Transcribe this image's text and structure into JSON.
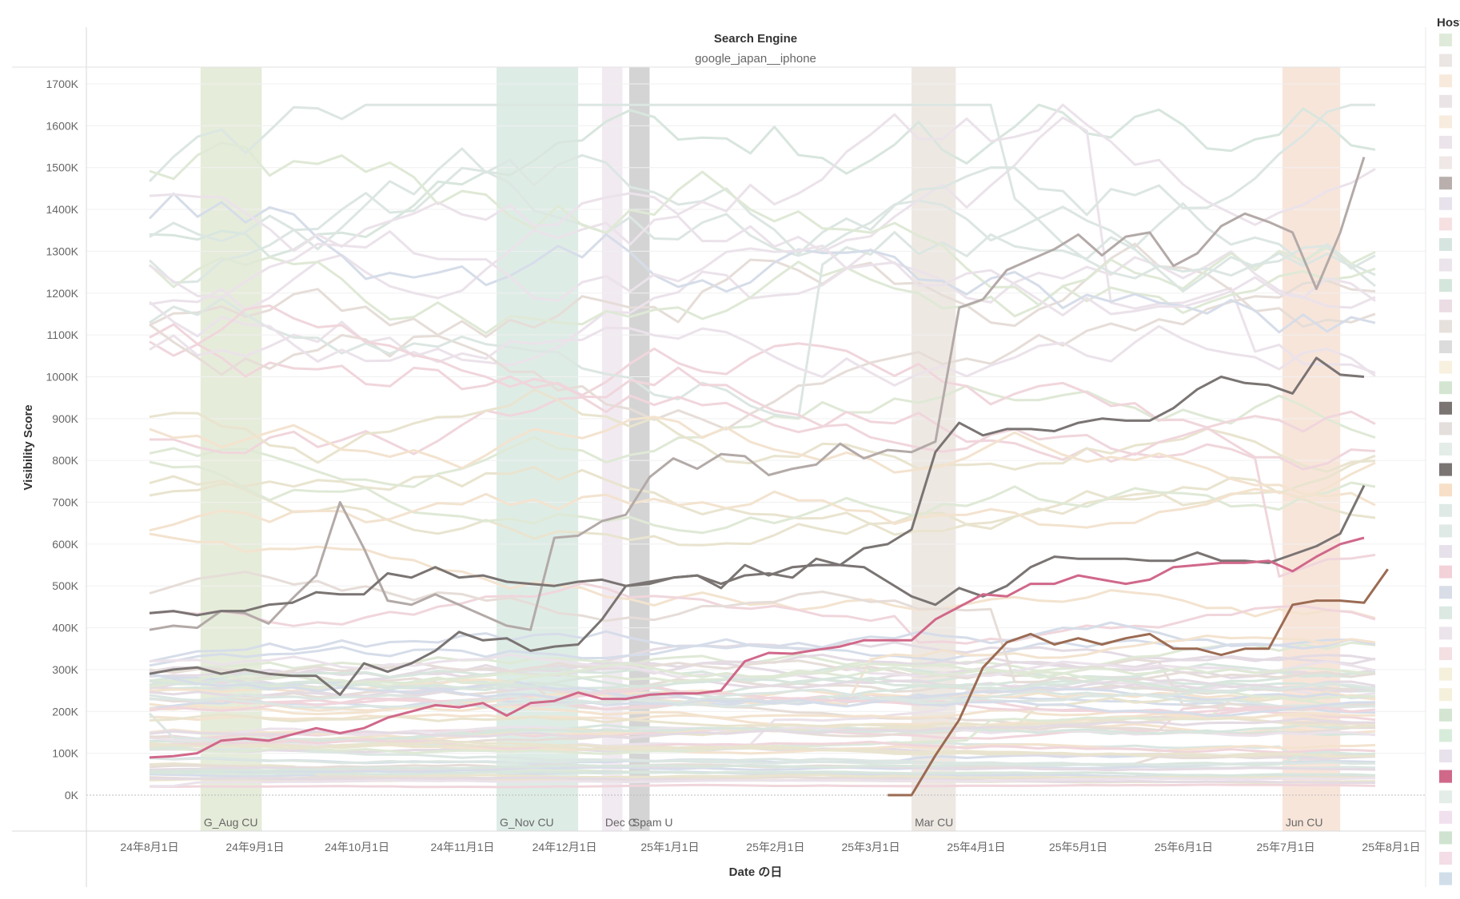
{
  "chart_data": {
    "type": "line",
    "header": {
      "title": "Search Engine",
      "subtitle": "google_japan__iphone"
    },
    "ylabel": "Visibility Score",
    "xlabel": "Date の日",
    "legend_title": "Host",
    "ylim": [
      0,
      1700000
    ],
    "y_ticks": [
      {
        "value": 0,
        "label": "0K"
      },
      {
        "value": 100000,
        "label": "100K"
      },
      {
        "value": 200000,
        "label": "200K"
      },
      {
        "value": 300000,
        "label": "300K"
      },
      {
        "value": 400000,
        "label": "400K"
      },
      {
        "value": 500000,
        "label": "500K"
      },
      {
        "value": 600000,
        "label": "600K"
      },
      {
        "value": 700000,
        "label": "700K"
      },
      {
        "value": 800000,
        "label": "800K"
      },
      {
        "value": 900000,
        "label": "900K"
      },
      {
        "value": 1000000,
        "label": "1000K"
      },
      {
        "value": 1100000,
        "label": "1100K"
      },
      {
        "value": 1200000,
        "label": "1200K"
      },
      {
        "value": 1300000,
        "label": "1300K"
      },
      {
        "value": 1400000,
        "label": "1400K"
      },
      {
        "value": 1500000,
        "label": "1500K"
      },
      {
        "value": 1600000,
        "label": "1600K"
      },
      {
        "value": 1700000,
        "label": "1700K"
      }
    ],
    "x_ticks": [
      {
        "date": "2024-08-01",
        "label": "24年8月1日"
      },
      {
        "date": "2024-09-01",
        "label": "24年9月1日"
      },
      {
        "date": "2024-10-01",
        "label": "24年10月1日"
      },
      {
        "date": "2024-11-01",
        "label": "24年11月1日"
      },
      {
        "date": "2024-12-01",
        "label": "24年12月1日"
      },
      {
        "date": "2025-01-01",
        "label": "25年1月1日"
      },
      {
        "date": "2025-02-01",
        "label": "25年2月1日"
      },
      {
        "date": "2025-03-01",
        "label": "25年3月1日"
      },
      {
        "date": "2025-04-01",
        "label": "25年4月1日"
      },
      {
        "date": "2025-05-01",
        "label": "25年5月1日"
      },
      {
        "date": "2025-06-01",
        "label": "25年6月1日"
      },
      {
        "date": "2025-07-01",
        "label": "25年7月1日"
      },
      {
        "date": "2025-08-01",
        "label": "25年8月1日"
      }
    ],
    "annotation_bands": [
      {
        "label": "G_Aug CU",
        "start": "2024-08-16",
        "end": "2024-09-03",
        "color": "#e6ecda"
      },
      {
        "label": "G_Nov CU",
        "start": "2024-11-11",
        "end": "2024-12-05",
        "color": "#deece6"
      },
      {
        "label": "Dec C",
        "start": "2024-12-12",
        "end": "2024-12-18",
        "color": "#f1eaf1"
      },
      {
        "label": "Spam U",
        "start": "2024-12-20",
        "end": "2024-12-26",
        "color": "#d4d4d4"
      },
      {
        "label": "Mar CU",
        "start": "2025-03-13",
        "end": "2025-03-26",
        "color": "#eee8e3"
      },
      {
        "label": "Jun CU",
        "start": "2025-06-30",
        "end": "2025-07-17",
        "color": "#f8e5da"
      }
    ],
    "series_colors": {
      "highlight_light_gray": "#b3aaa8",
      "highlight_dark_gray": "#7a7473",
      "highlight_pink": "#d0688a",
      "highlight_brown": "#9b6b52"
    },
    "highlighted_series": [
      {
        "color": "#b3aaa8",
        "x": [
          "2024-08-01",
          "2024-08-08",
          "2024-08-15",
          "2024-08-22",
          "2024-08-29",
          "2024-09-05",
          "2024-09-12",
          "2024-09-19",
          "2024-09-26",
          "2024-10-03",
          "2024-10-10",
          "2024-10-17",
          "2024-10-24",
          "2024-10-31",
          "2024-11-07",
          "2024-11-14",
          "2024-11-21",
          "2024-11-28",
          "2024-12-05",
          "2024-12-12",
          "2024-12-19",
          "2024-12-26",
          "2025-01-02",
          "2025-01-09",
          "2025-01-16",
          "2025-01-23",
          "2025-01-30",
          "2025-02-06",
          "2025-02-13",
          "2025-02-20",
          "2025-02-27",
          "2025-03-06",
          "2025-03-13",
          "2025-03-20",
          "2025-03-27",
          "2025-04-03",
          "2025-04-10",
          "2025-04-17",
          "2025-04-24",
          "2025-05-01",
          "2025-05-08",
          "2025-05-15",
          "2025-05-22",
          "2025-05-29",
          "2025-06-05",
          "2025-06-12",
          "2025-06-19",
          "2025-06-26",
          "2025-07-03",
          "2025-07-10",
          "2025-07-17",
          "2025-07-24"
        ],
        "values": [
          395000,
          405000,
          400000,
          440000,
          435000,
          410000,
          470000,
          525000,
          700000,
          590000,
          465000,
          455000,
          480000,
          455000,
          430000,
          405000,
          395000,
          615000,
          620000,
          655000,
          670000,
          760000,
          805000,
          780000,
          815000,
          810000,
          765000,
          780000,
          790000,
          840000,
          805000,
          825000,
          820000,
          845000,
          1165000,
          1185000,
          1255000,
          1280000,
          1305000,
          1340000,
          1290000,
          1335000,
          1345000,
          1265000,
          1295000,
          1360000,
          1390000,
          1370000,
          1345000,
          1210000,
          1345000,
          1525000
        ]
      },
      {
        "color": "#7a7473",
        "x": [
          "2024-08-01",
          "2024-08-08",
          "2024-08-15",
          "2024-08-22",
          "2024-08-29",
          "2024-09-05",
          "2024-09-12",
          "2024-09-19",
          "2024-09-26",
          "2024-10-03",
          "2024-10-10",
          "2024-10-17",
          "2024-10-24",
          "2024-10-31",
          "2024-11-07",
          "2024-11-14",
          "2024-11-21",
          "2024-11-28",
          "2024-12-05",
          "2024-12-12",
          "2024-12-19",
          "2024-12-26",
          "2025-01-02",
          "2025-01-09",
          "2025-01-16",
          "2025-01-23",
          "2025-01-30",
          "2025-02-06",
          "2025-02-13",
          "2025-02-20",
          "2025-02-27",
          "2025-03-06",
          "2025-03-13",
          "2025-03-20",
          "2025-03-27",
          "2025-04-03",
          "2025-04-10",
          "2025-04-17",
          "2025-04-24",
          "2025-05-01",
          "2025-05-08",
          "2025-05-15",
          "2025-05-22",
          "2025-05-29",
          "2025-06-05",
          "2025-06-12",
          "2025-06-19",
          "2025-06-26",
          "2025-07-03",
          "2025-07-10",
          "2025-07-17",
          "2025-07-24"
        ],
        "values": [
          435000,
          440000,
          430000,
          440000,
          440000,
          455000,
          460000,
          485000,
          480000,
          480000,
          530000,
          520000,
          545000,
          520000,
          525000,
          510000,
          505000,
          500000,
          510000,
          515000,
          500000,
          505000,
          520000,
          525000,
          495000,
          550000,
          525000,
          545000,
          550000,
          550000,
          590000,
          600000,
          635000,
          820000,
          890000,
          860000,
          875000,
          875000,
          870000,
          890000,
          900000,
          895000,
          895000,
          925000,
          970000,
          1000000,
          985000,
          980000,
          960000,
          1045000,
          1005000,
          1000000
        ]
      },
      {
        "color": "#7a7473",
        "x": [
          "2024-08-01",
          "2024-08-08",
          "2024-08-15",
          "2024-08-22",
          "2024-08-29",
          "2024-09-05",
          "2024-09-12",
          "2024-09-19",
          "2024-09-26",
          "2024-10-03",
          "2024-10-10",
          "2024-10-17",
          "2024-10-24",
          "2024-10-31",
          "2024-11-07",
          "2024-11-14",
          "2024-11-21",
          "2024-11-28",
          "2024-12-05",
          "2024-12-12",
          "2024-12-19",
          "2024-12-26",
          "2025-01-02",
          "2025-01-09",
          "2025-01-16",
          "2025-01-23",
          "2025-01-30",
          "2025-02-06",
          "2025-02-13",
          "2025-02-20",
          "2025-02-27",
          "2025-03-06",
          "2025-03-13",
          "2025-03-20",
          "2025-03-27",
          "2025-04-03",
          "2025-04-10",
          "2025-04-17",
          "2025-04-24",
          "2025-05-01",
          "2025-05-08",
          "2025-05-15",
          "2025-05-22",
          "2025-05-29",
          "2025-06-05",
          "2025-06-12",
          "2025-06-19",
          "2025-06-26",
          "2025-07-03",
          "2025-07-10",
          "2025-07-17",
          "2025-07-24"
        ],
        "values": [
          290000,
          300000,
          305000,
          290000,
          300000,
          290000,
          285000,
          285000,
          240000,
          315000,
          295000,
          315000,
          345000,
          390000,
          370000,
          375000,
          345000,
          355000,
          360000,
          420000,
          500000,
          510000,
          520000,
          525000,
          505000,
          525000,
          530000,
          520000,
          565000,
          550000,
          545000,
          510000,
          475000,
          455000,
          495000,
          475000,
          500000,
          545000,
          570000,
          565000,
          565000,
          565000,
          560000,
          560000,
          580000,
          560000,
          560000,
          555000,
          575000,
          595000,
          625000,
          740000
        ]
      },
      {
        "color": "#d0688a",
        "x": [
          "2024-08-01",
          "2024-08-08",
          "2024-08-15",
          "2024-08-22",
          "2024-08-29",
          "2024-09-05",
          "2024-09-12",
          "2024-09-19",
          "2024-09-26",
          "2024-10-03",
          "2024-10-10",
          "2024-10-17",
          "2024-10-24",
          "2024-10-31",
          "2024-11-07",
          "2024-11-14",
          "2024-11-21",
          "2024-11-28",
          "2024-12-05",
          "2024-12-12",
          "2024-12-19",
          "2024-12-26",
          "2025-01-02",
          "2025-01-09",
          "2025-01-16",
          "2025-01-23",
          "2025-01-30",
          "2025-02-06",
          "2025-02-13",
          "2025-02-20",
          "2025-02-27",
          "2025-03-06",
          "2025-03-13",
          "2025-03-20",
          "2025-03-27",
          "2025-04-03",
          "2025-04-10",
          "2025-04-17",
          "2025-04-24",
          "2025-05-01",
          "2025-05-08",
          "2025-05-15",
          "2025-05-22",
          "2025-05-29",
          "2025-06-05",
          "2025-06-12",
          "2025-06-19",
          "2025-06-26",
          "2025-07-03",
          "2025-07-10",
          "2025-07-17",
          "2025-07-24"
        ],
        "values": [
          90000,
          93000,
          100000,
          130000,
          135000,
          130000,
          145000,
          160000,
          148000,
          160000,
          185000,
          200000,
          215000,
          210000,
          220000,
          190000,
          220000,
          225000,
          245000,
          230000,
          230000,
          240000,
          243000,
          243000,
          250000,
          320000,
          340000,
          338000,
          347000,
          355000,
          370000,
          370000,
          370000,
          420000,
          450000,
          480000,
          475000,
          505000,
          505000,
          525000,
          515000,
          505000,
          515000,
          545000,
          550000,
          555000,
          555000,
          560000,
          535000,
          570000,
          600000,
          615000
        ]
      },
      {
        "color": "#9b6b52",
        "x": [
          "2025-03-06",
          "2025-03-13",
          "2025-03-20",
          "2025-03-27",
          "2025-04-03",
          "2025-04-10",
          "2025-04-17",
          "2025-04-24",
          "2025-05-01",
          "2025-05-08",
          "2025-05-15",
          "2025-05-22",
          "2025-05-29",
          "2025-06-05",
          "2025-06-12",
          "2025-06-19",
          "2025-06-26",
          "2025-07-03",
          "2025-07-10",
          "2025-07-17",
          "2025-07-24",
          "2025-07-31"
        ],
        "values": [
          0,
          0,
          95000,
          180000,
          305000,
          365000,
          385000,
          360000,
          375000,
          360000,
          375000,
          385000,
          350000,
          350000,
          335000,
          350000,
          350000,
          455000,
          465000,
          465000,
          460000,
          540000
        ]
      }
    ],
    "legend_swatches": [
      "#dfeadb",
      "#ebe6e3",
      "#f7eadd",
      "#ebe4e6",
      "#f8ecdf",
      "#ebe4ea",
      "#efe8e6",
      "#b9b0ae",
      "#e8e2ec",
      "#f6e0e2",
      "#d7e5e0",
      "#ebe4ea",
      "#d5e6dc",
      "#ecdce4",
      "#e7e1de",
      "#dddcdc",
      "#f8f1e0",
      "#d4e6d2",
      "#7a7473",
      "#e4dedc",
      "#e4ede8",
      "#7a7473",
      "#f7dfc8",
      "#dfe9e6",
      "#dfe9e6",
      "#e7e1eb",
      "#f2d1d9",
      "#d8dde8",
      "#dce9e3",
      "#ebe4ea",
      "#f4dfe3",
      "#f4f0dc",
      "#f4f0dc",
      "#d4e6d2",
      "#d8ecdb",
      "#e8e2ec",
      "#d0688a",
      "#e4ede8",
      "#f1e0ee",
      "#cfe3d0",
      "#f4dde6",
      "#d1deea"
    ]
  }
}
